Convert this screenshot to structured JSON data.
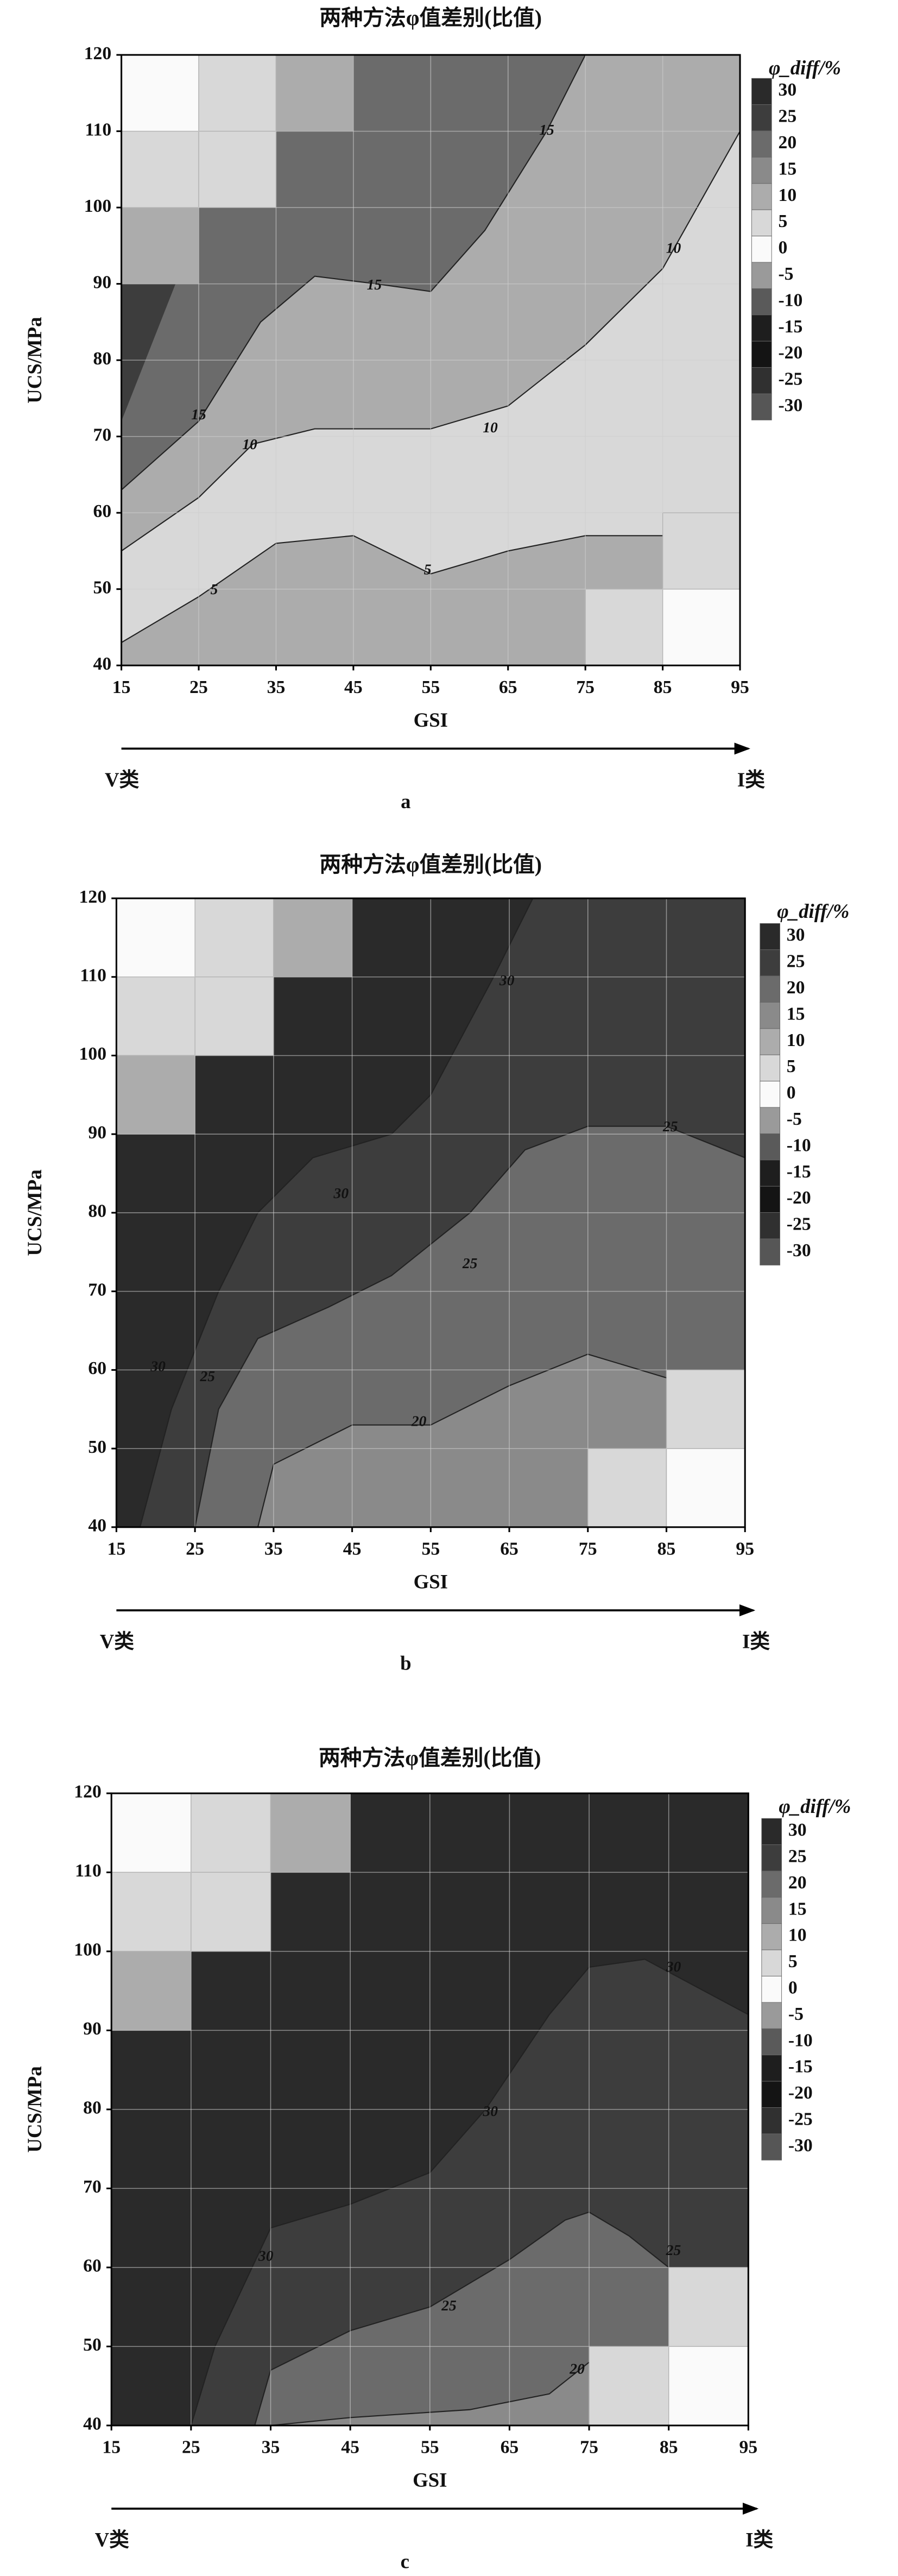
{
  "chart_data": [
    {
      "type": "contour",
      "title": "两种方法φ值差别(比值)",
      "xlabel": "GSI",
      "ylabel": "UCS/MPa",
      "xlim": [
        15,
        95
      ],
      "ylim": [
        40,
        120
      ],
      "xticks": [
        15,
        25,
        35,
        45,
        55,
        65,
        75,
        85,
        95
      ],
      "yticks": [
        40,
        50,
        60,
        70,
        80,
        90,
        100,
        110,
        120
      ],
      "grid": true,
      "colorbar": {
        "label": "φ_diff/%",
        "ticks": [
          30,
          25,
          20,
          15,
          10,
          5,
          0,
          -5,
          -10,
          -15,
          -20,
          -25,
          -30
        ],
        "colors": [
          "#2a2a2a",
          "#3d3d3d",
          "#6b6b6b",
          "#8a8a8a",
          "#acacac",
          "#d8d8d8",
          "#fafafa",
          "#9a9a9a",
          "#5a5a5a",
          "#1e1e1e",
          "#141414",
          "#303030",
          "#565656"
        ]
      },
      "contour_labels": [
        15,
        15,
        15,
        10,
        10,
        10,
        5,
        5
      ],
      "direction_labels": [
        "V类",
        "I类"
      ],
      "panel_label": "a"
    },
    {
      "type": "contour",
      "title": "两种方法φ值差别(比值)",
      "xlabel": "GSI",
      "ylabel": "UCS/MPa",
      "xlim": [
        15,
        95
      ],
      "ylim": [
        40,
        120
      ],
      "xticks": [
        15,
        25,
        35,
        45,
        55,
        65,
        75,
        85,
        95
      ],
      "yticks": [
        40,
        50,
        60,
        70,
        80,
        90,
        100,
        110,
        120
      ],
      "grid": true,
      "colorbar": {
        "label": "φ_diff/%",
        "ticks": [
          30,
          25,
          20,
          15,
          10,
          5,
          0,
          -5,
          -10,
          -15,
          -20,
          -25,
          -30
        ],
        "colors": [
          "#2a2a2a",
          "#3d3d3d",
          "#6b6b6b",
          "#8a8a8a",
          "#acacac",
          "#d8d8d8",
          "#fafafa",
          "#9a9a9a",
          "#5a5a5a",
          "#1e1e1e",
          "#141414",
          "#303030",
          "#565656"
        ]
      },
      "contour_labels": [
        30,
        30,
        30,
        25,
        25,
        25,
        20
      ],
      "direction_labels": [
        "V类",
        "I类"
      ],
      "panel_label": "b"
    },
    {
      "type": "contour",
      "title": "两种方法φ值差别(比值)",
      "xlabel": "GSI",
      "ylabel": "UCS/MPa",
      "xlim": [
        15,
        95
      ],
      "ylim": [
        40,
        120
      ],
      "xticks": [
        15,
        25,
        35,
        45,
        55,
        65,
        75,
        85,
        95
      ],
      "yticks": [
        40,
        50,
        60,
        70,
        80,
        90,
        100,
        110,
        120
      ],
      "grid": true,
      "colorbar": {
        "label": "φ_diff/%",
        "ticks": [
          30,
          25,
          20,
          15,
          10,
          5,
          0,
          -5,
          -10,
          -15,
          -20,
          -25,
          -30
        ],
        "colors": [
          "#2a2a2a",
          "#3d3d3d",
          "#6b6b6b",
          "#8a8a8a",
          "#acacac",
          "#d8d8d8",
          "#fafafa",
          "#9a9a9a",
          "#5a5a5a",
          "#1e1e1e",
          "#141414",
          "#303030",
          "#565656"
        ]
      },
      "contour_labels": [
        30,
        30,
        30,
        25,
        25,
        20
      ],
      "direction_labels": [
        "V类",
        "I类"
      ],
      "panel_label": "c"
    }
  ]
}
